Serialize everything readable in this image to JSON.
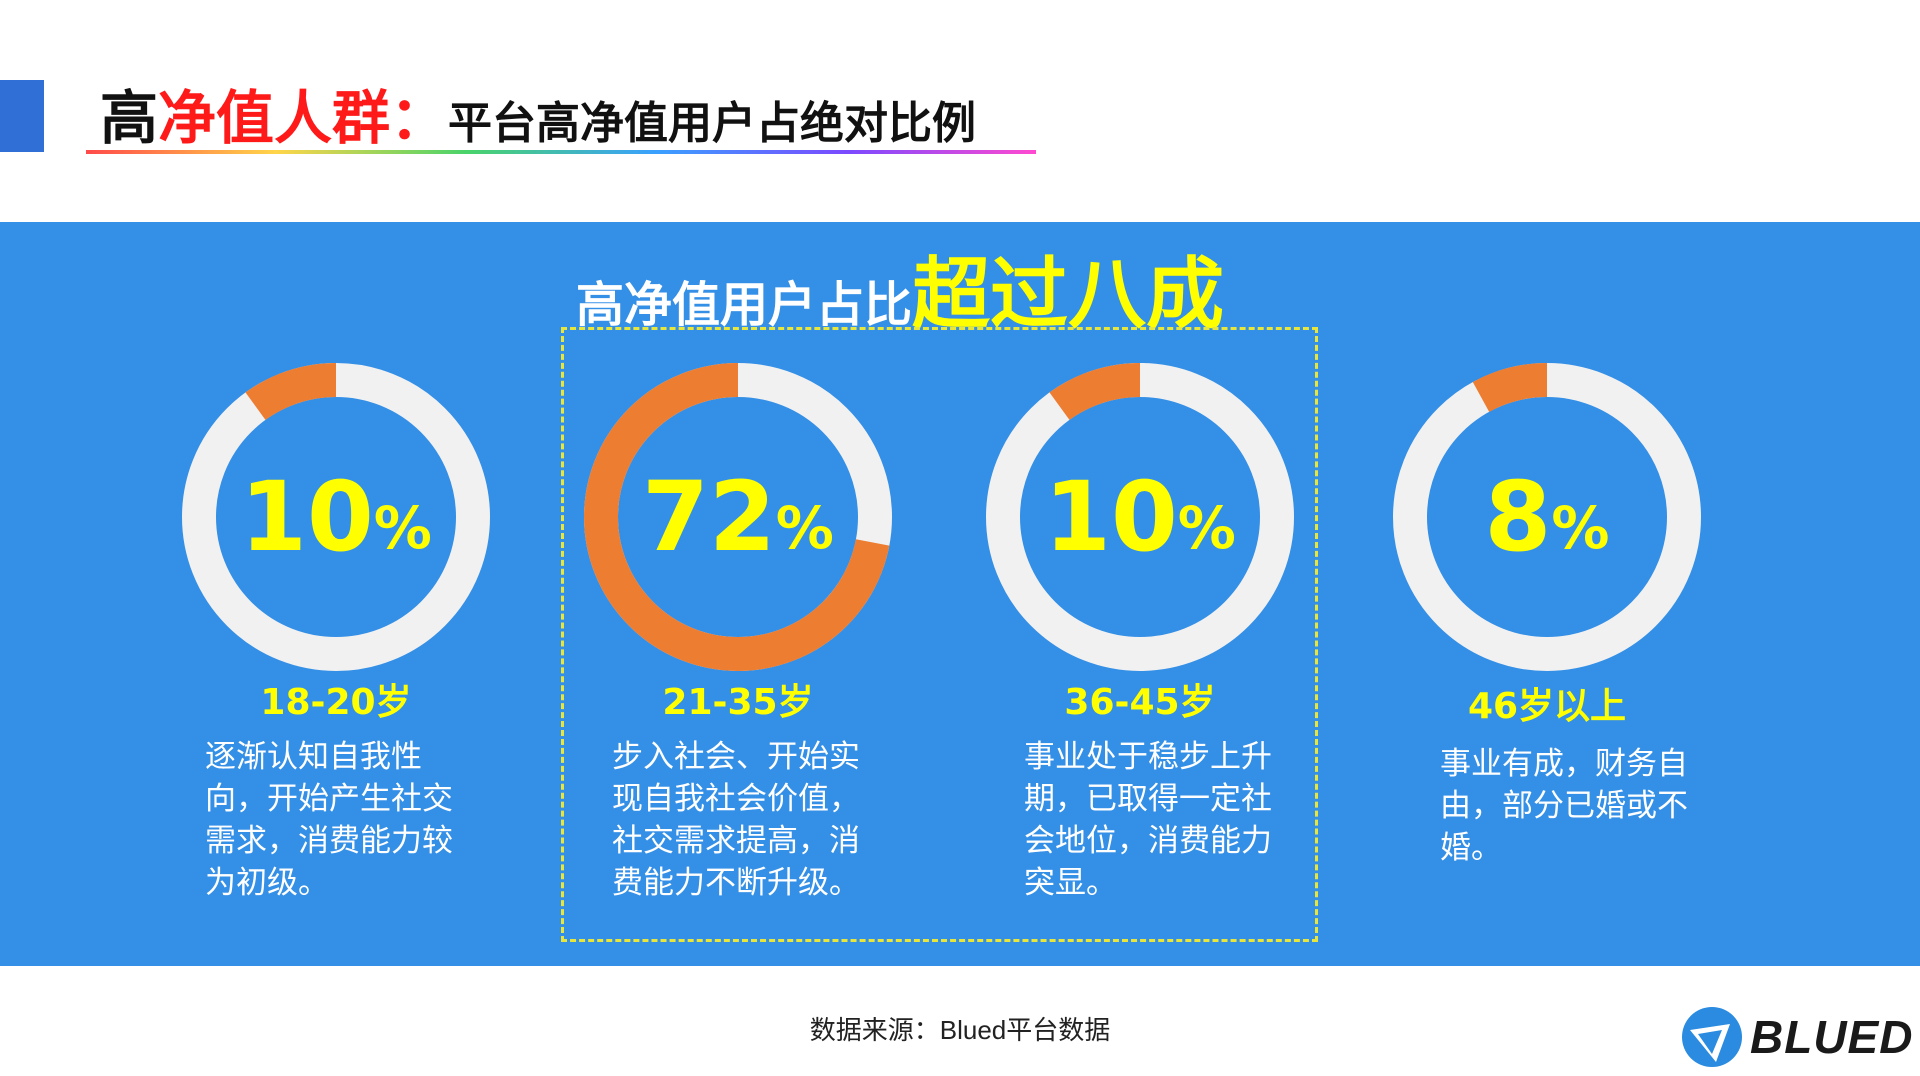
{
  "header": {
    "title_part1": "高",
    "title_part2": "净值人群：",
    "title_part3": "平台高净值用户占绝对比例"
  },
  "headline": {
    "lead": "高净值用户占比",
    "emphasis": "超过八成"
  },
  "colors": {
    "band": "#348fe6",
    "ring_track": "#f1f1f1",
    "ring_value": "#ed7d31",
    "highlight": "#ffff00",
    "accent": "#ff1a1a"
  },
  "chart_data": {
    "type": "pie",
    "categories": [
      "18-20岁",
      "21-35岁",
      "36-45岁",
      "46岁以上"
    ],
    "values": [
      10,
      72,
      10,
      8
    ],
    "labels": [
      "10%",
      "72%",
      "10%",
      "8%"
    ],
    "highlighted": "21-35岁"
  },
  "segments": [
    {
      "pct_num": "10",
      "pct_sign": "%",
      "age": "18-20岁",
      "desc": "逐渐认知自我性向，开始产生社交需求，消费能力较为初级。"
    },
    {
      "pct_num": "72",
      "pct_sign": "%",
      "age": "21-35岁",
      "desc": "步入社会、开始实现自我社会价值，社交需求提高，消费能力不断升级。"
    },
    {
      "pct_num": "10",
      "pct_sign": "%",
      "age": "36-45岁",
      "desc": "事业处于稳步上升期，已取得一定社会地位，消费能力突显。"
    },
    {
      "pct_num": "8",
      "pct_sign": "%",
      "age": "46岁以上",
      "desc": "事业有成，财务自由，部分已婚或不婚。"
    }
  ],
  "footer": {
    "source": "数据来源：Blued平台数据",
    "logo_text": "BLUED"
  }
}
